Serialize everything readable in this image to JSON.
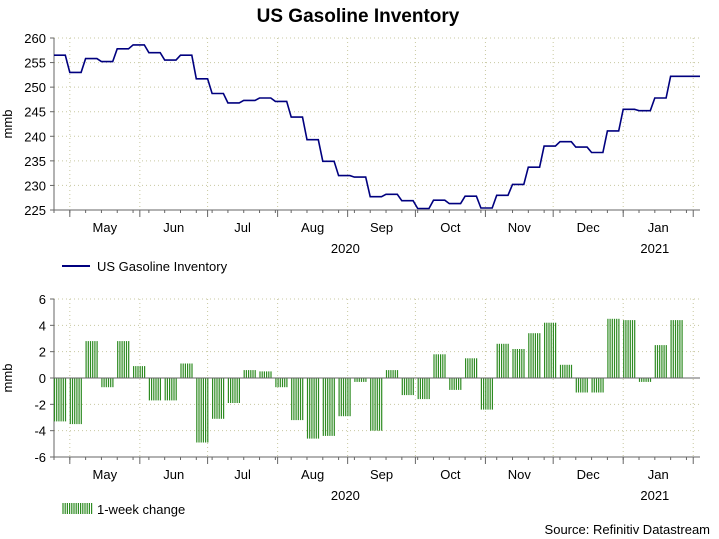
{
  "title": "US Gasoline Inventory",
  "source": "Source: Refinitiv Datastream",
  "colors": {
    "level_line": "#00007f",
    "change_bar": "#2e8b22",
    "grid": "#c8c8a0"
  },
  "chart_data": [
    {
      "type": "line",
      "ylabel": "mmb",
      "ylim": [
        225,
        260
      ],
      "yticks": [
        225,
        230,
        235,
        240,
        245,
        250,
        255,
        260
      ],
      "grid": true,
      "legend": "bottom-left",
      "x_axis": {
        "start": "2020-04-24",
        "end": "2021-02-04",
        "month_labels": [
          "May",
          "Jun",
          "Jul",
          "Aug",
          "Sep",
          "Oct",
          "Nov",
          "Dec",
          "Jan"
        ],
        "month_starts": [
          "2020-05-01",
          "2020-06-01",
          "2020-07-01",
          "2020-08-01",
          "2020-09-01",
          "2020-10-01",
          "2020-11-01",
          "2020-12-01",
          "2021-01-01",
          "2021-02-01"
        ],
        "year_labels": [
          {
            "label": "2020",
            "date": "2020-08-31"
          },
          {
            "label": "2021",
            "date": "2021-01-15"
          }
        ]
      },
      "series": [
        {
          "name": "US Gasoline Inventory",
          "dates": [
            "2020-04-24",
            "2020-05-01",
            "2020-05-08",
            "2020-05-15",
            "2020-05-22",
            "2020-05-29",
            "2020-06-05",
            "2020-06-12",
            "2020-06-19",
            "2020-06-26",
            "2020-07-03",
            "2020-07-10",
            "2020-07-17",
            "2020-07-24",
            "2020-07-31",
            "2020-08-07",
            "2020-08-14",
            "2020-08-21",
            "2020-08-28",
            "2020-09-04",
            "2020-09-11",
            "2020-09-18",
            "2020-09-25",
            "2020-10-02",
            "2020-10-09",
            "2020-10-16",
            "2020-10-23",
            "2020-10-30",
            "2020-11-06",
            "2020-11-13",
            "2020-11-20",
            "2020-11-27",
            "2020-12-04",
            "2020-12-11",
            "2020-12-18",
            "2020-12-25",
            "2021-01-01",
            "2021-01-08",
            "2021-01-15",
            "2021-01-22",
            "2021-01-29"
          ],
          "values": [
            256.5,
            253.0,
            255.8,
            255.2,
            257.8,
            258.6,
            257.0,
            255.5,
            256.5,
            251.7,
            248.7,
            246.8,
            247.3,
            247.8,
            247.1,
            243.9,
            239.3,
            234.9,
            232.0,
            231.7,
            227.7,
            228.2,
            226.9,
            225.3,
            227.0,
            226.3,
            227.8,
            225.4,
            228.0,
            230.2,
            233.7,
            238.0,
            238.9,
            237.8,
            236.7,
            241.1,
            245.5,
            245.2,
            247.8,
            252.2,
            252.2
          ]
        }
      ]
    },
    {
      "type": "bar",
      "ylabel": "mmb",
      "ylim": [
        -6,
        6
      ],
      "yticks": [
        -6,
        -4,
        -2,
        0,
        2,
        4,
        6
      ],
      "grid": true,
      "legend": "bottom-left",
      "x_axis": {
        "start": "2020-04-24",
        "end": "2021-02-04",
        "month_labels": [
          "May",
          "Jun",
          "Jul",
          "Aug",
          "Sep",
          "Oct",
          "Nov",
          "Dec",
          "Jan"
        ],
        "month_starts": [
          "2020-05-01",
          "2020-06-01",
          "2020-07-01",
          "2020-08-01",
          "2020-09-01",
          "2020-10-01",
          "2020-11-01",
          "2020-12-01",
          "2021-01-01",
          "2021-02-01"
        ],
        "year_labels": [
          {
            "label": "2020",
            "date": "2020-08-31"
          },
          {
            "label": "2021",
            "date": "2021-01-15"
          }
        ]
      },
      "series": [
        {
          "name": "1-week change",
          "dates": [
            "2020-04-24",
            "2020-05-01",
            "2020-05-08",
            "2020-05-15",
            "2020-05-22",
            "2020-05-29",
            "2020-06-05",
            "2020-06-12",
            "2020-06-19",
            "2020-06-26",
            "2020-07-03",
            "2020-07-10",
            "2020-07-17",
            "2020-07-24",
            "2020-07-31",
            "2020-08-07",
            "2020-08-14",
            "2020-08-21",
            "2020-08-28",
            "2020-09-04",
            "2020-09-11",
            "2020-09-18",
            "2020-09-25",
            "2020-10-02",
            "2020-10-09",
            "2020-10-16",
            "2020-10-23",
            "2020-10-30",
            "2020-11-06",
            "2020-11-13",
            "2020-11-20",
            "2020-11-27",
            "2020-12-04",
            "2020-12-11",
            "2020-12-18",
            "2020-12-25",
            "2021-01-01",
            "2021-01-08",
            "2021-01-15",
            "2021-01-22",
            "2021-01-29"
          ],
          "values": [
            -3.3,
            -3.5,
            2.8,
            -0.7,
            2.8,
            0.9,
            -1.7,
            -1.7,
            1.1,
            -4.9,
            -3.1,
            -1.9,
            0.6,
            0.5,
            -0.7,
            -3.2,
            -4.6,
            -4.4,
            -2.9,
            -0.3,
            -4.0,
            0.6,
            -1.3,
            -1.6,
            1.8,
            -0.9,
            1.5,
            -2.4,
            2.6,
            2.2,
            3.4,
            4.2,
            1.0,
            -1.1,
            -1.1,
            4.5,
            4.4,
            -0.3,
            2.5,
            4.4,
            0.0
          ]
        }
      ]
    }
  ]
}
